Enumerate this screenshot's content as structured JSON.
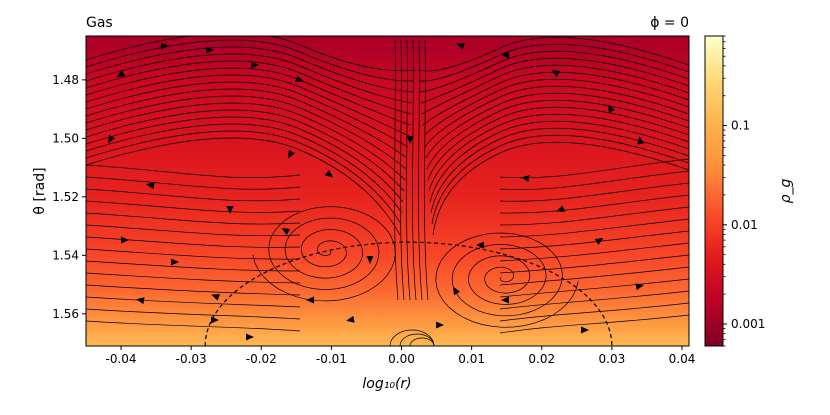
{
  "chart_data": {
    "type": "heatmap",
    "title_left": "Gas",
    "title_right": "ϕ = 0",
    "xlabel": "log₁₀(r)",
    "ylabel": "θ [rad]",
    "xlim": [
      -0.045,
      0.041
    ],
    "ylim": [
      1.571,
      1.465
    ],
    "x_ticks": [
      "-0.04",
      "-0.03",
      "-0.02",
      "-0.01",
      "0.00",
      "0.01",
      "0.02",
      "0.03",
      "0.04"
    ],
    "x_tick_values": [
      -0.04,
      -0.03,
      -0.02,
      -0.01,
      0.0,
      0.01,
      0.02,
      0.03,
      0.04
    ],
    "y_ticks": [
      "1.48",
      "1.50",
      "1.52",
      "1.54",
      "1.56"
    ],
    "y_tick_values": [
      1.48,
      1.5,
      1.52,
      1.54,
      1.56
    ],
    "colorbar": {
      "label": "ρ_g",
      "scale": "log",
      "range": [
        0.0006,
        0.8
      ],
      "ticks": [
        "0.1",
        "0.01",
        "0.001"
      ],
      "tick_values": [
        0.1,
        0.01,
        0.001
      ],
      "colormap": "YlOrRd",
      "colors": [
        "#800026",
        "#bd0026",
        "#e31a1c",
        "#fc4e2a",
        "#fd8d3c",
        "#feb24c",
        "#fed976",
        "#ffffcc"
      ]
    },
    "density_rows": [
      {
        "theta": 1.468,
        "log_rho": -2.9
      },
      {
        "theta": 1.48,
        "log_rho": -2.65
      },
      {
        "theta": 1.5,
        "log_rho": -2.45
      },
      {
        "theta": 1.52,
        "log_rho": -2.25
      },
      {
        "theta": 1.54,
        "log_rho": -1.95
      },
      {
        "theta": 1.552,
        "log_rho": -1.7
      },
      {
        "theta": 1.562,
        "log_rho": -1.35
      },
      {
        "theta": 1.571,
        "log_rho": -0.9
      }
    ],
    "boundary_circle": {
      "center_x": 0.001,
      "center_theta": 1.571,
      "radius": 0.029,
      "style": "dashed"
    },
    "vortices": [
      {
        "x": -0.0105,
        "theta": 1.5385
      },
      {
        "x": 0.0145,
        "theta": 1.5475
      }
    ],
    "streamlines": "black"
  }
}
